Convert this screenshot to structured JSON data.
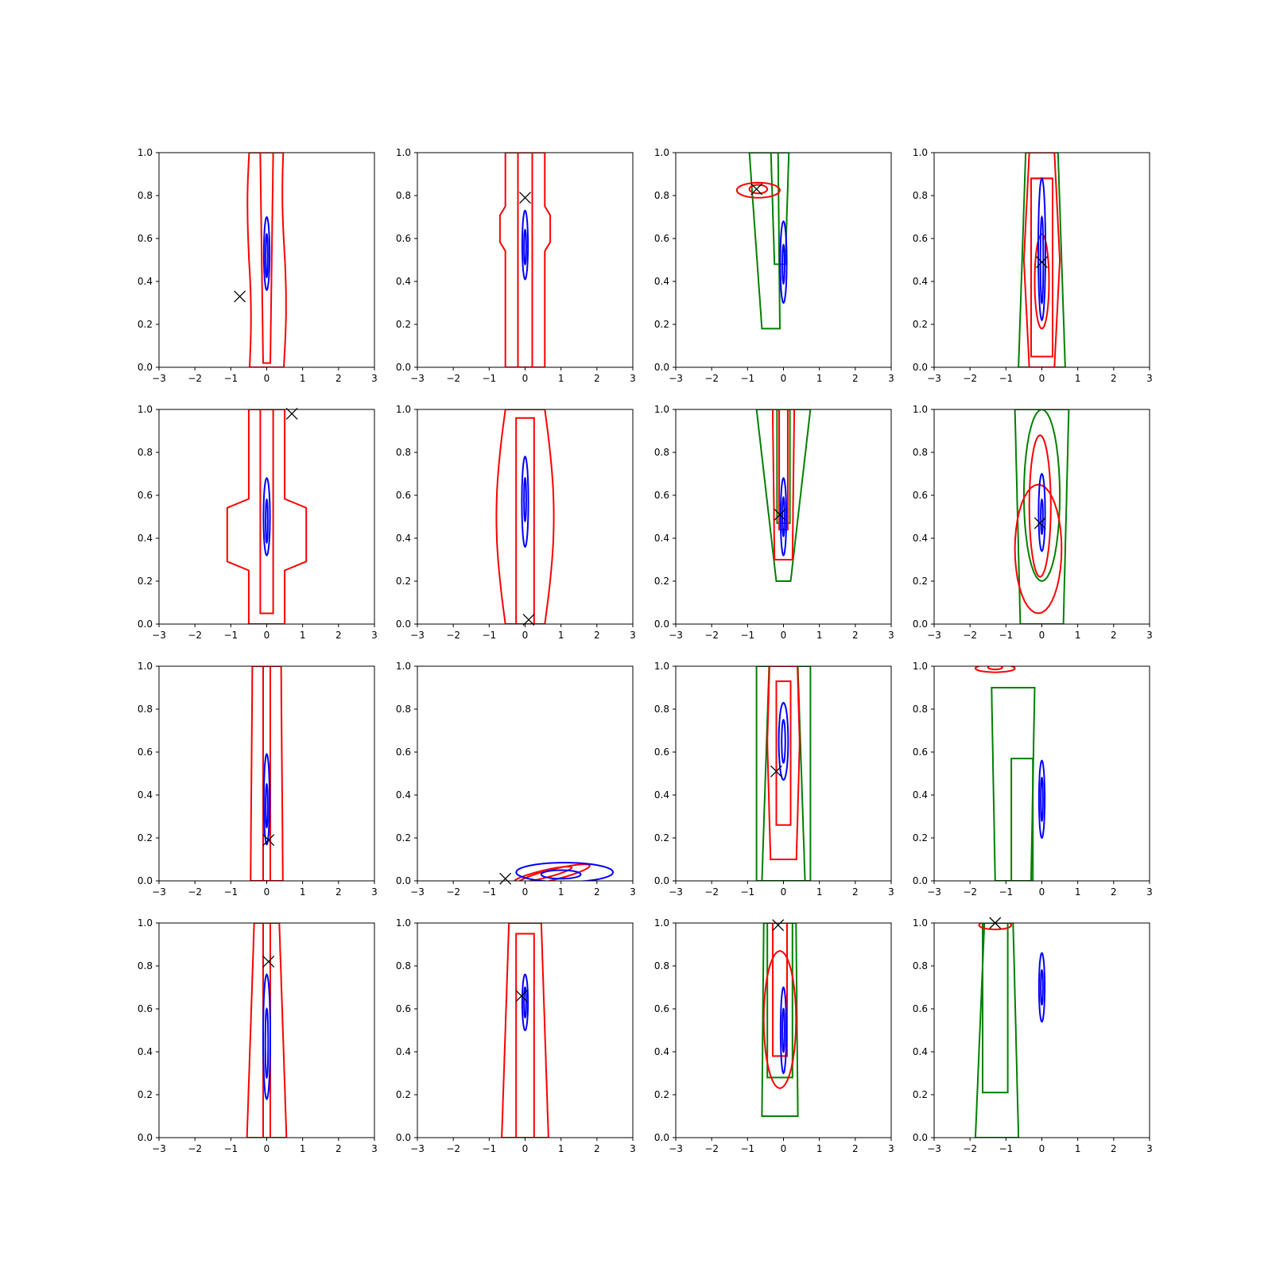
{
  "figure": {
    "grid": [
      4,
      4
    ],
    "series_colors": {
      "red": "#ff0000",
      "blue": "#0000ff",
      "green": "#008000",
      "marker": "#000000"
    }
  },
  "chart_data": {
    "type": "contour",
    "description_of_series": [
      "red contours",
      "blue contours",
      "green contours",
      "black x marker"
    ],
    "xlim": [
      -3,
      3
    ],
    "ylim": [
      0,
      1
    ],
    "xticks": [
      "−3",
      "−2",
      "−1",
      "0",
      "1",
      "2",
      "3"
    ],
    "yticks": [
      "0.0",
      "0.2",
      "0.4",
      "0.6",
      "0.8",
      "1.0"
    ],
    "panels": [
      {
        "row": 0,
        "col": 0,
        "marker": [
          -0.75,
          0.33
        ],
        "red": [
          [
            [
              -0.55,
              0
            ],
            [
              -0.6,
              0.3
            ],
            [
              -0.8,
              0.6
            ],
            [
              -0.75,
              1
            ]
          ],
          [
            [
              0.15,
              0
            ],
            [
              0.15,
              0.5
            ],
            [
              -0.25,
              1
            ]
          ]
        ],
        "blue": [
          [
            [
              0,
              0.6
            ],
            [
              0,
              0.5
            ]
          ]
        ]
      },
      {
        "row": 0,
        "col": 1,
        "marker": [
          0,
          0.79
        ]
      },
      {
        "row": 0,
        "col": 2,
        "marker": [
          -0.75,
          0.83
        ]
      },
      {
        "row": 0,
        "col": 3,
        "marker": [
          0,
          0.49
        ]
      },
      {
        "row": 1,
        "col": 0,
        "marker": [
          0.7,
          0.98
        ]
      },
      {
        "row": 1,
        "col": 1,
        "marker": [
          0.1,
          0.02
        ]
      },
      {
        "row": 1,
        "col": 2,
        "marker": [
          -0.1,
          0.51
        ]
      },
      {
        "row": 1,
        "col": 3,
        "marker": [
          -0.05,
          0.47
        ]
      },
      {
        "row": 2,
        "col": 0,
        "marker": [
          0.05,
          0.19
        ]
      },
      {
        "row": 2,
        "col": 1,
        "marker": [
          -0.55,
          0.01
        ]
      },
      {
        "row": 2,
        "col": 2,
        "marker": [
          -0.2,
          0.51
        ]
      },
      {
        "row": 2,
        "col": 3,
        "marker": null
      },
      {
        "row": 3,
        "col": 0,
        "marker": [
          0.05,
          0.82
        ]
      },
      {
        "row": 3,
        "col": 1,
        "marker": [
          -0.1,
          0.66
        ]
      },
      {
        "row": 3,
        "col": 2,
        "marker": [
          -0.15,
          0.99
        ]
      },
      {
        "row": 3,
        "col": 3,
        "marker": [
          -1.3,
          1.0
        ]
      }
    ]
  }
}
